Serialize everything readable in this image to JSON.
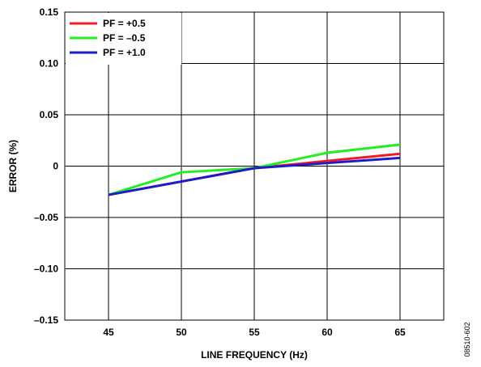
{
  "figure_id": "08510-602",
  "chart_data": {
    "type": "line",
    "xlabel": "LINE FREQUENCY (Hz)",
    "ylabel": "ERROR (%)",
    "xlim": [
      42,
      68
    ],
    "ylim": [
      -0.15,
      0.15
    ],
    "x_ticks": [
      45,
      50,
      55,
      60,
      65
    ],
    "x_tick_labels": [
      "45",
      "50",
      "55",
      "60",
      "65"
    ],
    "y_ticks": [
      -0.15,
      -0.1,
      -0.05,
      0,
      0.05,
      0.1,
      0.15
    ],
    "y_tick_labels": [
      "–0.15",
      "–0.10",
      "–0.05",
      "0",
      "0.05",
      "0.10",
      "0.15"
    ],
    "grid": true,
    "legend_position": "top-left",
    "series": [
      {
        "name": "PF = +0.5",
        "color": "#ee1c24",
        "x": [
          45,
          50,
          55,
          60,
          65
        ],
        "y": [
          -0.028,
          -0.015,
          -0.002,
          0.005,
          0.012
        ]
      },
      {
        "name": "PF = –0.5",
        "color": "#22ee22",
        "x": [
          45,
          50,
          55,
          60,
          65
        ],
        "y": [
          -0.028,
          -0.006,
          -0.002,
          0.013,
          0.021
        ]
      },
      {
        "name": "PF = +1.0",
        "color": "#1c1ccc",
        "x": [
          45,
          50,
          55,
          60,
          65
        ],
        "y": [
          -0.028,
          -0.015,
          -0.002,
          0.003,
          0.008
        ]
      }
    ]
  }
}
